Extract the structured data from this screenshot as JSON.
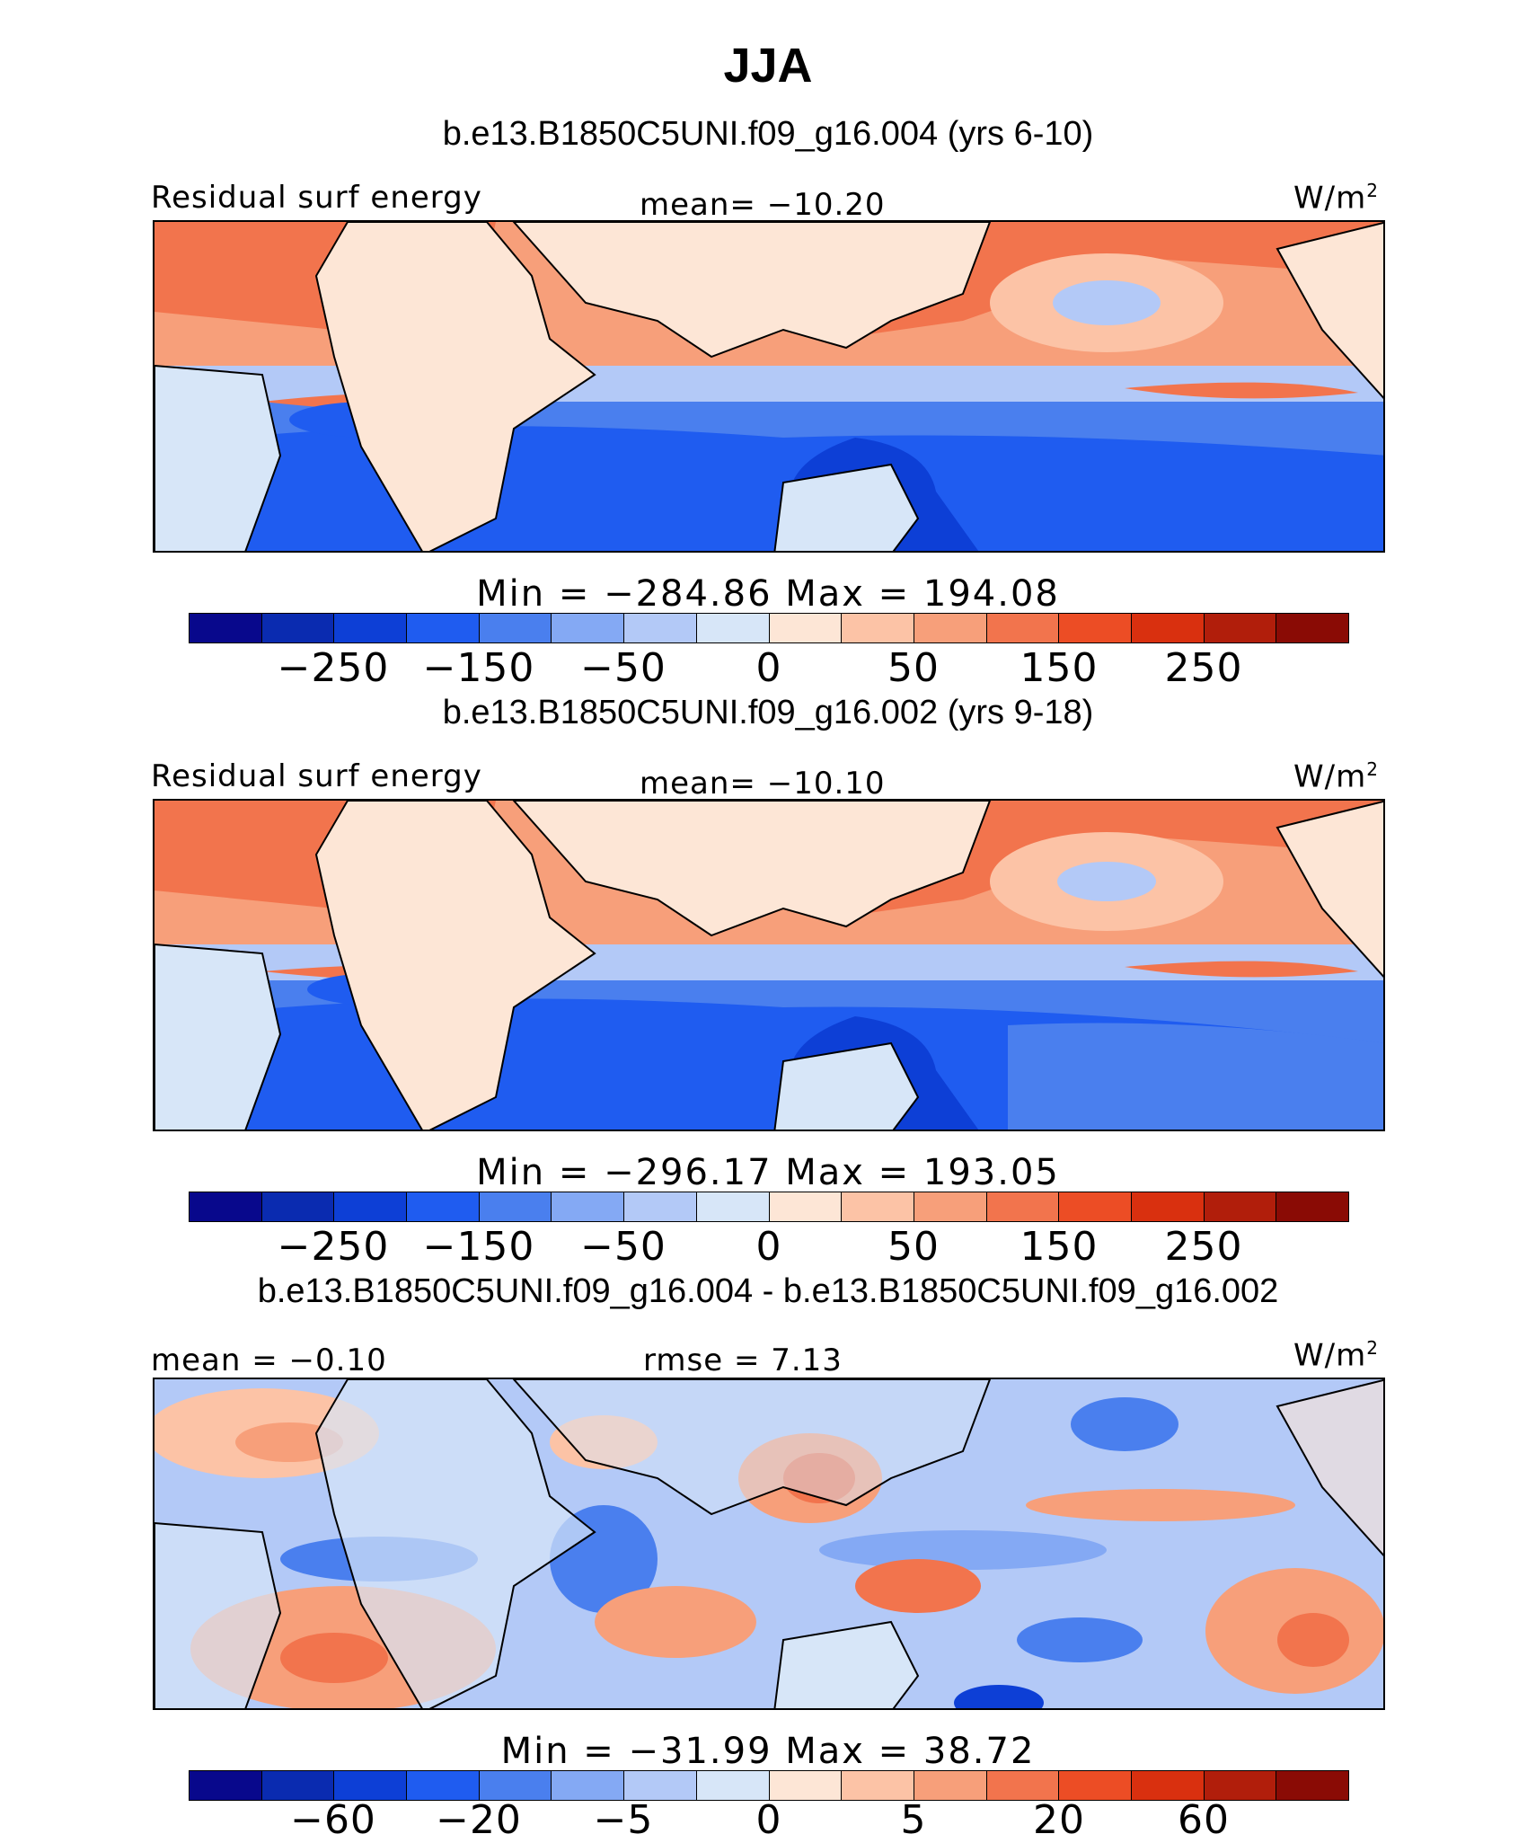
{
  "title": "JJA",
  "units_sup": "2",
  "panels": [
    {
      "title": "b.e13.B1850C5UNI.f09_g16.004 (yrs 6-10)",
      "left_label": "Residual surf energy",
      "center_label": "mean= −10.20",
      "units": "W/m",
      "minmax": "Min = −284.86 Max = 194.08",
      "ticks": [
        "−250",
        "−150",
        "−50",
        "0",
        "50",
        "150",
        "250"
      ]
    },
    {
      "title": "b.e13.B1850C5UNI.f09_g16.002 (yrs 9-18)",
      "left_label": "Residual surf energy",
      "center_label": "mean= −10.10",
      "units": "W/m",
      "minmax": "Min = −296.17 Max = 193.05",
      "ticks": [
        "−250",
        "−150",
        "−50",
        "0",
        "50",
        "150",
        "250"
      ]
    },
    {
      "title": "b.e13.B1850C5UNI.f09_g16.004 - b.e13.B1850C5UNI.f09_g16.002",
      "left_label": "mean = −0.10",
      "center_label": "rmse = 7.13",
      "units": "W/m",
      "minmax": "Min = −31.99 Max = 38.72",
      "ticks": [
        "−60",
        "−20",
        "−5",
        "0",
        "5",
        "20",
        "60"
      ]
    }
  ],
  "colorbar_colors": [
    "#08088c",
    "#0a2bb0",
    "#0d3fd6",
    "#1f5cf0",
    "#4a7fee",
    "#84a9f4",
    "#b3c9f7",
    "#d7e6f8",
    "#fde6d6",
    "#fcc3a6",
    "#f79f7a",
    "#f2744d",
    "#ec4d25",
    "#d9300f",
    "#b11e0b",
    "#8a0b05"
  ]
}
